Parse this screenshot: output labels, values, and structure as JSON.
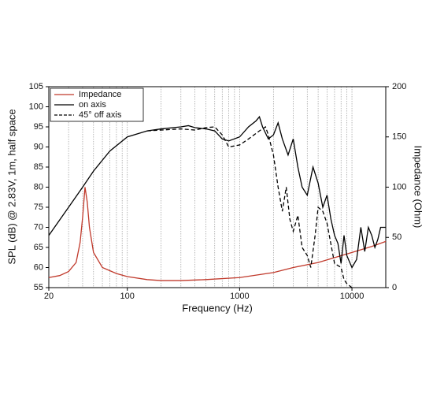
{
  "chart_data": {
    "type": "line",
    "xlabel": "Frequency (Hz)",
    "ylabel": "SPL (dB) @ 2.83V, 1m, half space",
    "y2label": "Impedance (Ohm)",
    "xscale": "log",
    "xlim": [
      20,
      20000
    ],
    "xticks": [
      20,
      100,
      1000,
      10000
    ],
    "xgrid": [
      20,
      30,
      40,
      50,
      60,
      70,
      80,
      90,
      100,
      200,
      300,
      400,
      500,
      600,
      700,
      800,
      900,
      1000,
      2000,
      3000,
      4000,
      5000,
      6000,
      7000,
      8000,
      9000,
      10000,
      20000
    ],
    "ylim": [
      55,
      105
    ],
    "yticks": [
      55,
      60,
      65,
      70,
      75,
      80,
      85,
      90,
      95,
      100,
      105
    ],
    "y2lim": [
      0,
      200
    ],
    "y2ticks": [
      0,
      50,
      100,
      150,
      200
    ],
    "legend": "upper left",
    "series": [
      {
        "name": "Impedance",
        "color": "#c0392b",
        "linestyle": "solid",
        "axis": "y2",
        "x": [
          20,
          25,
          30,
          35,
          38,
          40,
          42,
          44,
          46,
          50,
          60,
          80,
          100,
          150,
          200,
          300,
          500,
          1000,
          2000,
          3000,
          5000,
          10000,
          15000,
          20000
        ],
        "values": [
          10,
          12,
          16,
          25,
          45,
          70,
          100,
          85,
          60,
          35,
          20,
          14,
          11,
          8,
          7,
          7,
          8,
          10,
          15,
          20,
          25,
          35,
          41,
          46
        ]
      },
      {
        "name": "on axis",
        "color": "#000000",
        "linestyle": "solid",
        "x": [
          20,
          30,
          40,
          50,
          70,
          100,
          150,
          200,
          300,
          350,
          400,
          500,
          600,
          700,
          800,
          1000,
          1200,
          1400,
          1500,
          1600,
          1800,
          2000,
          2200,
          2400,
          2700,
          3000,
          3300,
          3600,
          4000,
          4500,
          5000,
          5500,
          6000,
          6500,
          7000,
          7500,
          8000,
          8500,
          9000,
          10000,
          11000,
          12000,
          13000,
          14000,
          15000,
          16000,
          17000,
          18000,
          20000
        ],
        "values": [
          68,
          75,
          80,
          84,
          89,
          92.5,
          94,
          94.5,
          95,
          95.3,
          94.8,
          94.5,
          94,
          92,
          91.5,
          92.5,
          95,
          96.5,
          97.5,
          95,
          92,
          93,
          96,
          92,
          88,
          92,
          85,
          80,
          78,
          85,
          81,
          75,
          78,
          72,
          68,
          66,
          61,
          68,
          63,
          60,
          62,
          70,
          64,
          70,
          68,
          65,
          67,
          70,
          70
        ]
      },
      {
        "name": "45° off axis",
        "color": "#000000",
        "linestyle": "dashed",
        "x": [
          150,
          200,
          300,
          400,
          500,
          600,
          700,
          800,
          1000,
          1200,
          1500,
          1700,
          1800,
          2000,
          2200,
          2400,
          2600,
          2800,
          3000,
          3300,
          3600,
          4000,
          4300,
          4700,
          5000,
          5500,
          6000,
          7000,
          8000,
          8500,
          9000,
          10000
        ],
        "values": [
          94,
          94.2,
          94.5,
          94.2,
          94.8,
          95,
          93,
          90,
          90.5,
          92,
          94,
          95,
          93,
          88,
          80,
          74,
          80,
          72,
          69,
          73,
          65,
          63,
          60,
          68,
          75,
          74,
          71,
          61,
          60,
          57,
          56,
          55
        ]
      }
    ]
  }
}
